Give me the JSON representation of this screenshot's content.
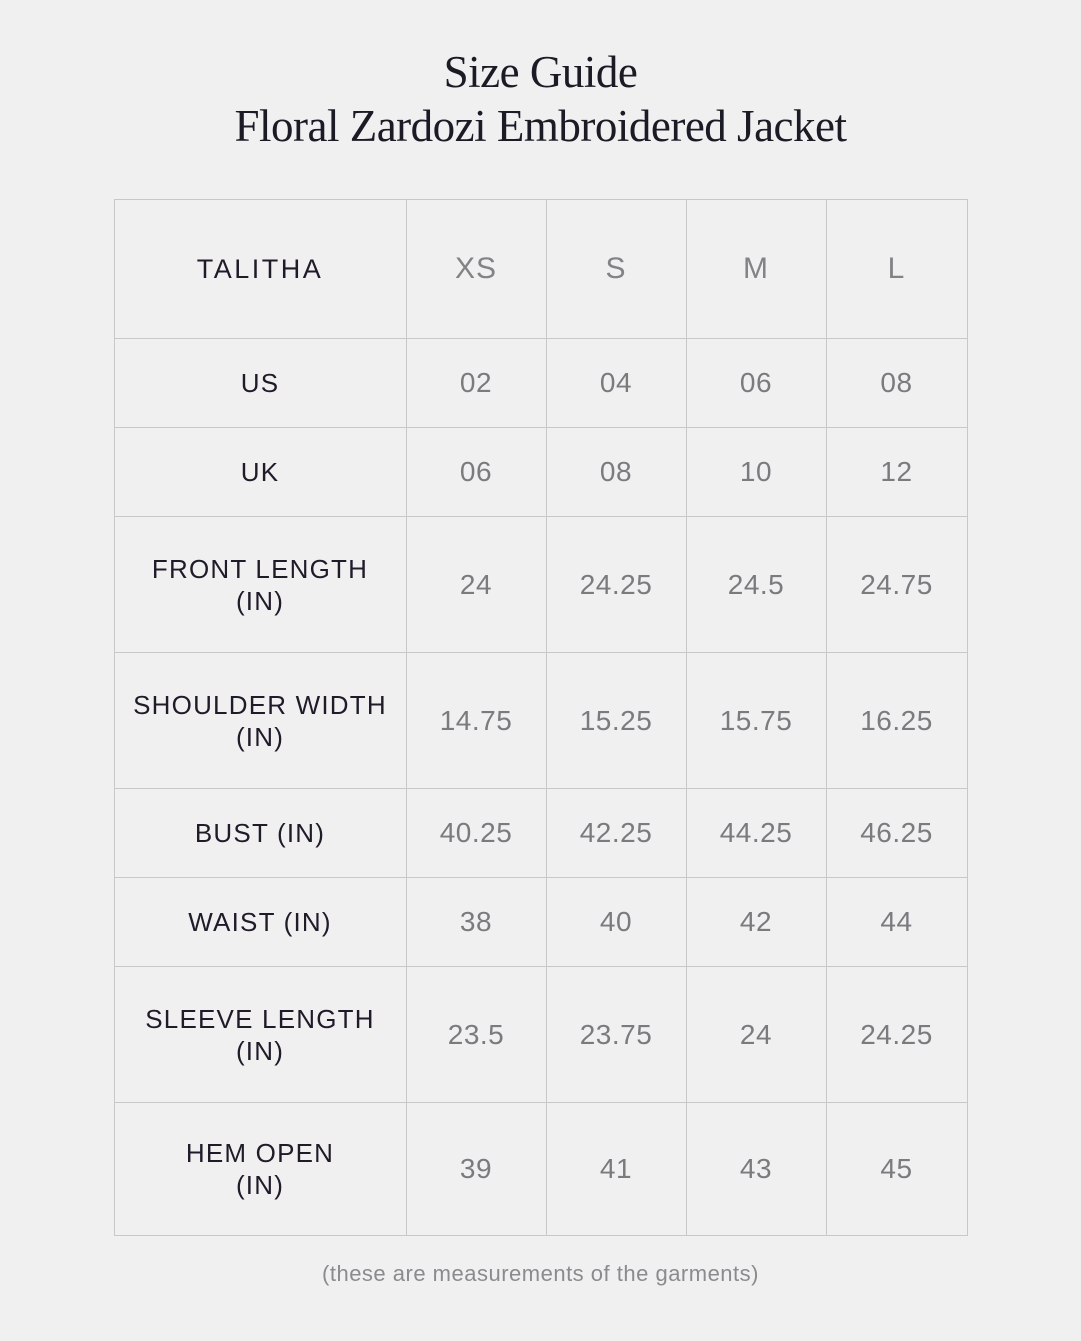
{
  "colors": {
    "background": "#f0f0f1",
    "border": "#c8c8cb",
    "dark_text": "#211a29",
    "title_text": "#1b1b26",
    "value_text": "#7b7a7e",
    "muted_text": "#838287",
    "note_text": "#8b8a8e"
  },
  "header": {
    "title": "Size Guide",
    "subtitle": "Floral Zardozi Embroidered Jacket"
  },
  "table": {
    "brand": "TALITHA",
    "size_columns": [
      "XS",
      "S",
      "M",
      "L"
    ],
    "rows": [
      {
        "lines": [
          "US"
        ],
        "values": [
          "02",
          "04",
          "06",
          "08"
        ]
      },
      {
        "lines": [
          "UK"
        ],
        "values": [
          "06",
          "08",
          "10",
          "12"
        ]
      },
      {
        "lines": [
          "FRONT LENGTH",
          "(IN)"
        ],
        "values": [
          "24",
          "24.25",
          "24.5",
          "24.75"
        ]
      },
      {
        "lines": [
          "SHOULDER WIDTH",
          "(IN)"
        ],
        "values": [
          "14.75",
          "15.25",
          "15.75",
          "16.25"
        ]
      },
      {
        "lines": [
          "BUST (IN)"
        ],
        "values": [
          "40.25",
          "42.25",
          "44.25",
          "46.25"
        ]
      },
      {
        "lines": [
          "WAIST (IN)"
        ],
        "values": [
          "38",
          "40",
          "42",
          "44"
        ]
      },
      {
        "lines": [
          "SLEEVE LENGTH",
          "(IN)"
        ],
        "values": [
          "23.5",
          "23.75",
          "24",
          "24.25"
        ]
      },
      {
        "lines": [
          "HEM OPEN",
          "(IN)"
        ],
        "values": [
          "39",
          "41",
          "43",
          "45"
        ]
      }
    ]
  },
  "footer": {
    "note": "(these are measurements of the garments)"
  }
}
